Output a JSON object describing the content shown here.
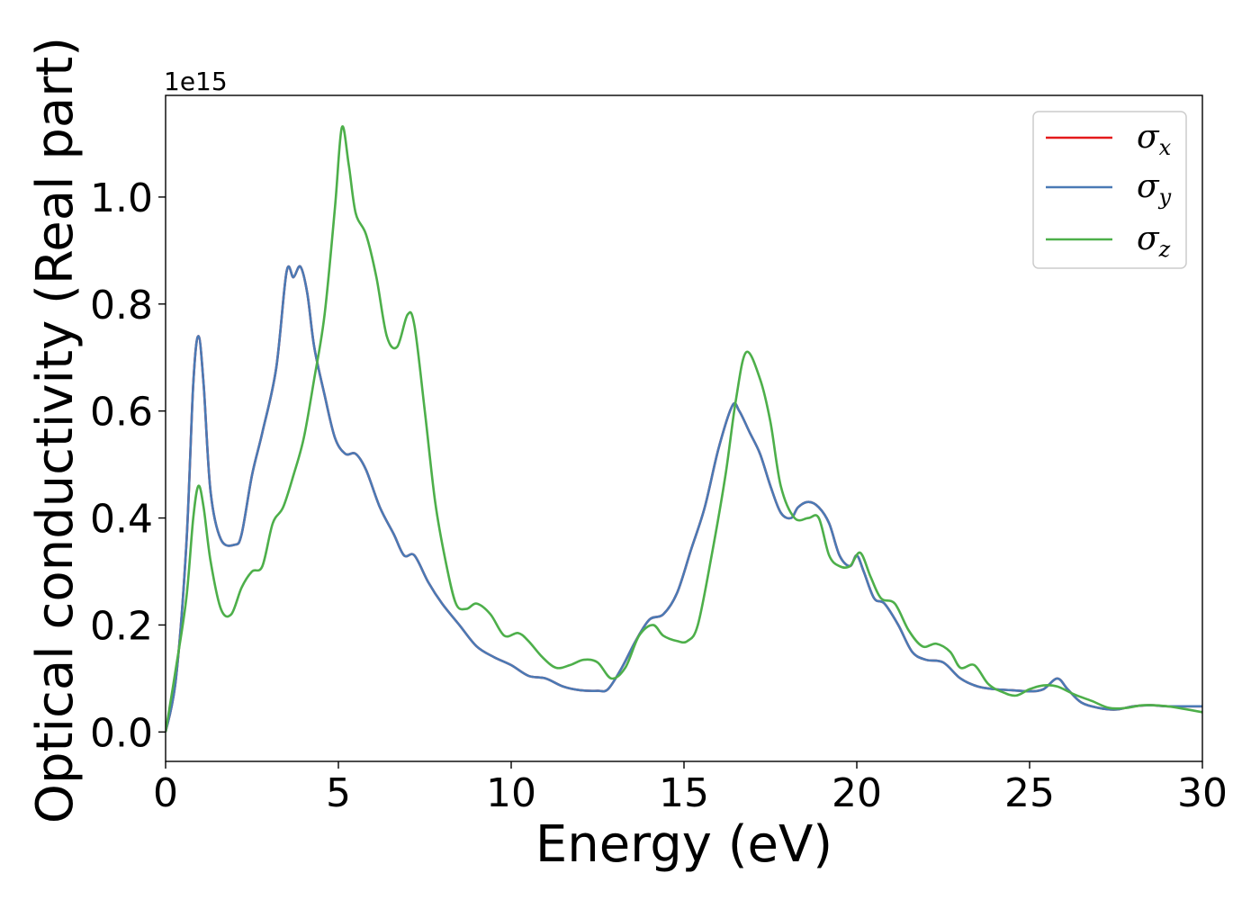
{
  "chart_data": {
    "type": "line",
    "xlabel": "Energy (eV)",
    "ylabel": "Optical conductivity (Real part)",
    "y_offset_label": "1e15",
    "xlim": [
      0,
      30
    ],
    "ylim": [
      -0.055,
      1.19
    ],
    "x_ticks": [
      0,
      5,
      10,
      15,
      20,
      25,
      30
    ],
    "x_tick_labels": [
      "0",
      "5",
      "10",
      "15",
      "20",
      "25",
      "30"
    ],
    "y_ticks": [
      0.0,
      0.2,
      0.4,
      0.6,
      0.8,
      1.0
    ],
    "y_tick_labels": [
      "0.0",
      "0.2",
      "0.4",
      "0.6",
      "0.8",
      "1.0"
    ],
    "grid": false,
    "legend_position": "top-right",
    "series": [
      {
        "name": "σ",
        "subscript": "x",
        "color": "#e41a1c",
        "points": [
          [
            0,
            0
          ],
          [
            0.3,
            0.1
          ],
          [
            0.6,
            0.35
          ],
          [
            0.8,
            0.65
          ],
          [
            0.95,
            0.74
          ],
          [
            1.1,
            0.65
          ],
          [
            1.3,
            0.45
          ],
          [
            1.6,
            0.36
          ],
          [
            2.0,
            0.35
          ],
          [
            2.2,
            0.37
          ],
          [
            2.5,
            0.48
          ],
          [
            2.8,
            0.56
          ],
          [
            3.2,
            0.68
          ],
          [
            3.5,
            0.86
          ],
          [
            3.7,
            0.85
          ],
          [
            3.9,
            0.87
          ],
          [
            4.1,
            0.82
          ],
          [
            4.3,
            0.72
          ],
          [
            4.6,
            0.63
          ],
          [
            4.9,
            0.55
          ],
          [
            5.2,
            0.52
          ],
          [
            5.5,
            0.52
          ],
          [
            5.8,
            0.49
          ],
          [
            6.2,
            0.42
          ],
          [
            6.6,
            0.37
          ],
          [
            6.9,
            0.33
          ],
          [
            7.2,
            0.33
          ],
          [
            7.6,
            0.28
          ],
          [
            8.0,
            0.24
          ],
          [
            8.5,
            0.2
          ],
          [
            9.0,
            0.16
          ],
          [
            9.5,
            0.14
          ],
          [
            10.0,
            0.125
          ],
          [
            10.5,
            0.105
          ],
          [
            11.0,
            0.1
          ],
          [
            11.5,
            0.085
          ],
          [
            12.0,
            0.078
          ],
          [
            12.5,
            0.077
          ],
          [
            12.8,
            0.08
          ],
          [
            13.2,
            0.12
          ],
          [
            13.6,
            0.17
          ],
          [
            14.0,
            0.21
          ],
          [
            14.4,
            0.22
          ],
          [
            14.8,
            0.26
          ],
          [
            15.2,
            0.34
          ],
          [
            15.6,
            0.42
          ],
          [
            16.0,
            0.53
          ],
          [
            16.4,
            0.61
          ],
          [
            16.6,
            0.6
          ],
          [
            16.9,
            0.56
          ],
          [
            17.2,
            0.52
          ],
          [
            17.5,
            0.46
          ],
          [
            17.8,
            0.41
          ],
          [
            18.1,
            0.4
          ],
          [
            18.3,
            0.42
          ],
          [
            18.6,
            0.43
          ],
          [
            18.9,
            0.42
          ],
          [
            19.2,
            0.39
          ],
          [
            19.5,
            0.33
          ],
          [
            19.8,
            0.31
          ],
          [
            20.0,
            0.33
          ],
          [
            20.2,
            0.3
          ],
          [
            20.5,
            0.25
          ],
          [
            20.8,
            0.24
          ],
          [
            21.2,
            0.2
          ],
          [
            21.6,
            0.15
          ],
          [
            22.0,
            0.135
          ],
          [
            22.5,
            0.13
          ],
          [
            23.0,
            0.1
          ],
          [
            23.5,
            0.085
          ],
          [
            24.0,
            0.08
          ],
          [
            24.5,
            0.078
          ],
          [
            25.0,
            0.076
          ],
          [
            25.4,
            0.08
          ],
          [
            25.8,
            0.1
          ],
          [
            26.1,
            0.08
          ],
          [
            26.5,
            0.055
          ],
          [
            27.0,
            0.045
          ],
          [
            27.5,
            0.042
          ],
          [
            28.0,
            0.048
          ],
          [
            28.5,
            0.05
          ],
          [
            29.0,
            0.048
          ],
          [
            30.0,
            0.048
          ]
        ]
      },
      {
        "name": "σ",
        "subscript": "y",
        "color": "#4a7ab5",
        "points": [
          [
            0,
            0
          ],
          [
            0.3,
            0.1
          ],
          [
            0.6,
            0.35
          ],
          [
            0.8,
            0.65
          ],
          [
            0.95,
            0.74
          ],
          [
            1.1,
            0.65
          ],
          [
            1.3,
            0.45
          ],
          [
            1.6,
            0.36
          ],
          [
            2.0,
            0.35
          ],
          [
            2.2,
            0.37
          ],
          [
            2.5,
            0.48
          ],
          [
            2.8,
            0.56
          ],
          [
            3.2,
            0.68
          ],
          [
            3.5,
            0.86
          ],
          [
            3.7,
            0.85
          ],
          [
            3.9,
            0.87
          ],
          [
            4.1,
            0.82
          ],
          [
            4.3,
            0.72
          ],
          [
            4.6,
            0.63
          ],
          [
            4.9,
            0.55
          ],
          [
            5.2,
            0.52
          ],
          [
            5.5,
            0.52
          ],
          [
            5.8,
            0.49
          ],
          [
            6.2,
            0.42
          ],
          [
            6.6,
            0.37
          ],
          [
            6.9,
            0.33
          ],
          [
            7.2,
            0.33
          ],
          [
            7.6,
            0.28
          ],
          [
            8.0,
            0.24
          ],
          [
            8.5,
            0.2
          ],
          [
            9.0,
            0.16
          ],
          [
            9.5,
            0.14
          ],
          [
            10.0,
            0.125
          ],
          [
            10.5,
            0.105
          ],
          [
            11.0,
            0.1
          ],
          [
            11.5,
            0.085
          ],
          [
            12.0,
            0.078
          ],
          [
            12.5,
            0.077
          ],
          [
            12.8,
            0.08
          ],
          [
            13.2,
            0.12
          ],
          [
            13.6,
            0.17
          ],
          [
            14.0,
            0.21
          ],
          [
            14.4,
            0.22
          ],
          [
            14.8,
            0.26
          ],
          [
            15.2,
            0.34
          ],
          [
            15.6,
            0.42
          ],
          [
            16.0,
            0.53
          ],
          [
            16.4,
            0.61
          ],
          [
            16.6,
            0.6
          ],
          [
            16.9,
            0.56
          ],
          [
            17.2,
            0.52
          ],
          [
            17.5,
            0.46
          ],
          [
            17.8,
            0.41
          ],
          [
            18.1,
            0.4
          ],
          [
            18.3,
            0.42
          ],
          [
            18.6,
            0.43
          ],
          [
            18.9,
            0.42
          ],
          [
            19.2,
            0.39
          ],
          [
            19.5,
            0.33
          ],
          [
            19.8,
            0.31
          ],
          [
            20.0,
            0.33
          ],
          [
            20.2,
            0.3
          ],
          [
            20.5,
            0.25
          ],
          [
            20.8,
            0.24
          ],
          [
            21.2,
            0.2
          ],
          [
            21.6,
            0.15
          ],
          [
            22.0,
            0.135
          ],
          [
            22.5,
            0.13
          ],
          [
            23.0,
            0.1
          ],
          [
            23.5,
            0.085
          ],
          [
            24.0,
            0.08
          ],
          [
            24.5,
            0.078
          ],
          [
            25.0,
            0.076
          ],
          [
            25.4,
            0.08
          ],
          [
            25.8,
            0.1
          ],
          [
            26.1,
            0.08
          ],
          [
            26.5,
            0.055
          ],
          [
            27.0,
            0.045
          ],
          [
            27.5,
            0.042
          ],
          [
            28.0,
            0.048
          ],
          [
            28.5,
            0.05
          ],
          [
            29.0,
            0.048
          ],
          [
            30.0,
            0.048
          ]
        ]
      },
      {
        "name": "σ",
        "subscript": "z",
        "color": "#4daf4a",
        "points": [
          [
            0,
            0
          ],
          [
            0.3,
            0.12
          ],
          [
            0.6,
            0.25
          ],
          [
            0.8,
            0.4
          ],
          [
            0.95,
            0.46
          ],
          [
            1.1,
            0.42
          ],
          [
            1.3,
            0.32
          ],
          [
            1.6,
            0.23
          ],
          [
            1.9,
            0.22
          ],
          [
            2.2,
            0.27
          ],
          [
            2.5,
            0.3
          ],
          [
            2.8,
            0.31
          ],
          [
            3.1,
            0.39
          ],
          [
            3.4,
            0.42
          ],
          [
            3.7,
            0.48
          ],
          [
            4.0,
            0.55
          ],
          [
            4.3,
            0.66
          ],
          [
            4.6,
            0.78
          ],
          [
            4.9,
            0.98
          ],
          [
            5.1,
            1.13
          ],
          [
            5.3,
            1.06
          ],
          [
            5.5,
            0.97
          ],
          [
            5.8,
            0.93
          ],
          [
            6.1,
            0.85
          ],
          [
            6.4,
            0.74
          ],
          [
            6.7,
            0.72
          ],
          [
            7.0,
            0.78
          ],
          [
            7.2,
            0.76
          ],
          [
            7.5,
            0.6
          ],
          [
            7.8,
            0.43
          ],
          [
            8.1,
            0.32
          ],
          [
            8.4,
            0.24
          ],
          [
            8.7,
            0.23
          ],
          [
            9.0,
            0.24
          ],
          [
            9.4,
            0.22
          ],
          [
            9.8,
            0.18
          ],
          [
            10.2,
            0.185
          ],
          [
            10.5,
            0.17
          ],
          [
            10.9,
            0.14
          ],
          [
            11.3,
            0.12
          ],
          [
            11.7,
            0.125
          ],
          [
            12.1,
            0.135
          ],
          [
            12.5,
            0.13
          ],
          [
            12.9,
            0.1
          ],
          [
            13.3,
            0.12
          ],
          [
            13.7,
            0.18
          ],
          [
            14.1,
            0.2
          ],
          [
            14.4,
            0.18
          ],
          [
            14.8,
            0.17
          ],
          [
            15.1,
            0.17
          ],
          [
            15.4,
            0.2
          ],
          [
            15.8,
            0.33
          ],
          [
            16.2,
            0.48
          ],
          [
            16.5,
            0.62
          ],
          [
            16.8,
            0.71
          ],
          [
            17.2,
            0.66
          ],
          [
            17.5,
            0.58
          ],
          [
            17.8,
            0.46
          ],
          [
            18.2,
            0.4
          ],
          [
            18.6,
            0.4
          ],
          [
            18.9,
            0.4
          ],
          [
            19.2,
            0.33
          ],
          [
            19.5,
            0.31
          ],
          [
            19.8,
            0.31
          ],
          [
            20.1,
            0.335
          ],
          [
            20.4,
            0.29
          ],
          [
            20.7,
            0.25
          ],
          [
            21.1,
            0.24
          ],
          [
            21.5,
            0.19
          ],
          [
            21.9,
            0.16
          ],
          [
            22.3,
            0.165
          ],
          [
            22.7,
            0.15
          ],
          [
            23.0,
            0.12
          ],
          [
            23.4,
            0.125
          ],
          [
            23.8,
            0.09
          ],
          [
            24.2,
            0.075
          ],
          [
            24.6,
            0.068
          ],
          [
            25.0,
            0.08
          ],
          [
            25.4,
            0.087
          ],
          [
            25.8,
            0.085
          ],
          [
            26.3,
            0.07
          ],
          [
            26.8,
            0.058
          ],
          [
            27.3,
            0.045
          ],
          [
            27.8,
            0.045
          ],
          [
            28.3,
            0.05
          ],
          [
            29.0,
            0.048
          ],
          [
            30.0,
            0.037
          ]
        ]
      }
    ]
  }
}
